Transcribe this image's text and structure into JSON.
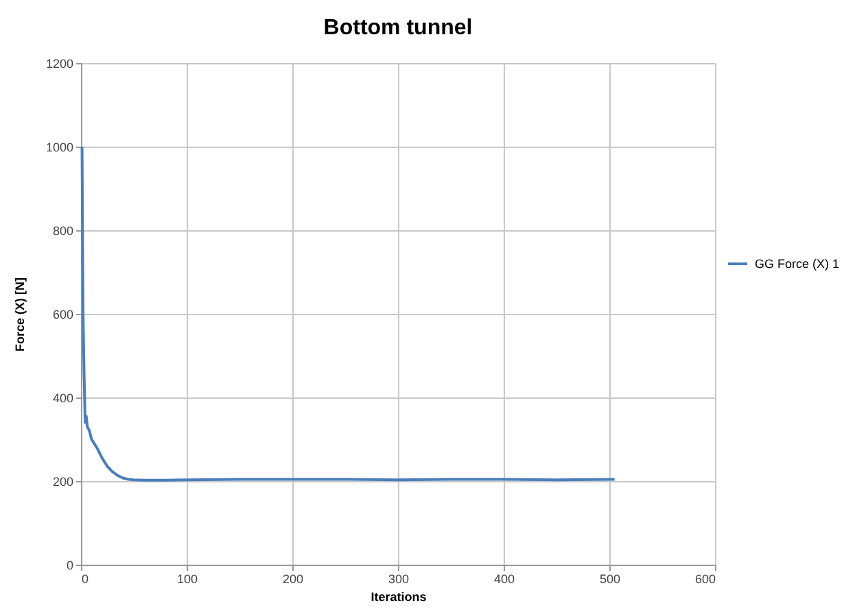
{
  "chart_data": {
    "type": "line",
    "title": "Bottom tunnel",
    "xlabel": "Iterations",
    "ylabel": "Force (X)  [N]",
    "x": [
      1,
      2,
      3,
      4,
      5,
      6,
      8,
      10,
      12,
      15,
      20,
      25,
      30,
      35,
      40,
      45,
      50,
      60,
      80,
      100,
      150,
      200,
      250,
      300,
      350,
      400,
      450,
      505
    ],
    "series": [
      {
        "name": "GG Force (X) 1",
        "color": "#4a7ebb",
        "values": [
          1000,
          600,
          450,
          340,
          355,
          330,
          320,
          300,
          292,
          280,
          255,
          235,
          222,
          213,
          207,
          204,
          203,
          202,
          202,
          203,
          204,
          204,
          204,
          203,
          204,
          204,
          203,
          204
        ]
      }
    ],
    "xlim": [
      0,
      600
    ],
    "xticks": [
      0,
      100,
      200,
      300,
      400,
      500,
      600
    ],
    "ylim": [
      0,
      1200
    ],
    "yticks": [
      0,
      200,
      400,
      600,
      800,
      1000,
      1200
    ],
    "grid": true,
    "legend": "right",
    "marker": "none",
    "line_style": "solid"
  }
}
